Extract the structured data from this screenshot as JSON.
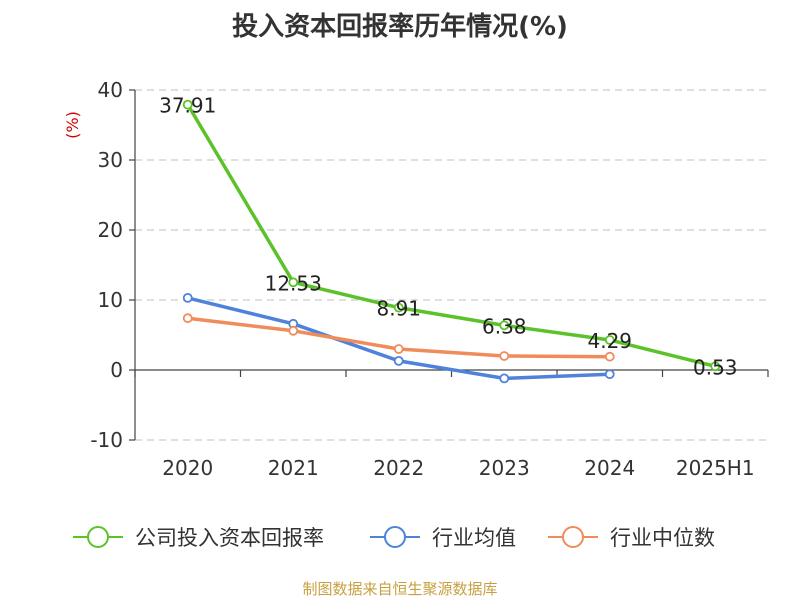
{
  "chart_data": {
    "type": "line",
    "title": "投入资本回报率历年情况(%)",
    "ylabel": "(%)",
    "xlabel": "",
    "categories": [
      "2020",
      "2021",
      "2022",
      "2023",
      "2024",
      "2025H1"
    ],
    "ylim": [
      -10,
      40
    ],
    "yticks": [
      -10,
      0,
      10,
      20,
      30,
      40
    ],
    "grid": true,
    "legend_position": "bottom",
    "series": [
      {
        "name": "公司投入资本回报率",
        "color": "#5cc22a",
        "values": [
          37.91,
          12.53,
          8.91,
          6.38,
          4.29,
          0.53
        ],
        "labels": [
          "37.91",
          "12.53",
          "8.91",
          "6.38",
          "4.29",
          "0.53"
        ]
      },
      {
        "name": "行业均值",
        "color": "#4f82da",
        "values": [
          10.3,
          6.6,
          1.3,
          -1.2,
          -0.6,
          null
        ]
      },
      {
        "name": "行业中位数",
        "color": "#f08c5a",
        "values": [
          7.4,
          5.6,
          3.0,
          2.0,
          1.9,
          null
        ]
      }
    ]
  },
  "source": {
    "text": "制图数据来自恒生聚源数据库",
    "color": "#c8a040"
  },
  "ylabel_color": "#d40000"
}
